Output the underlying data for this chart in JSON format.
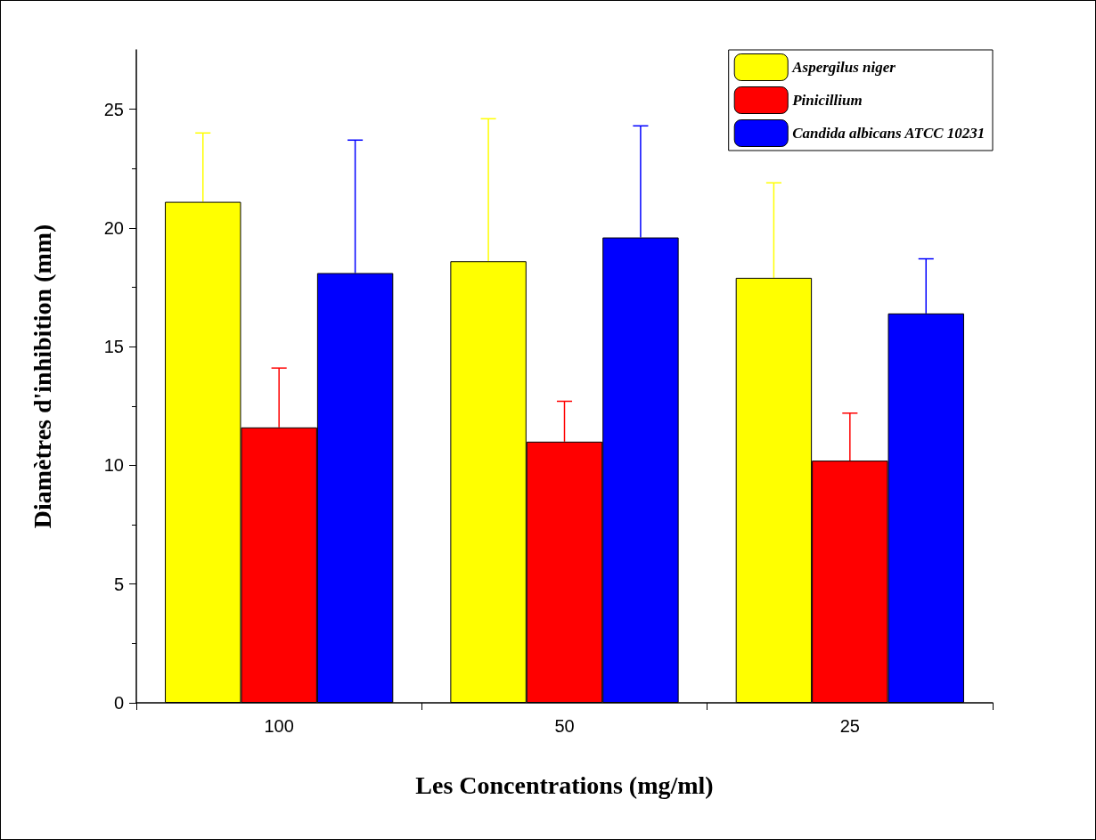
{
  "chart_data": {
    "type": "bar",
    "xlabel": "Les Concentrations (mg/ml)",
    "ylabel": "Diamètres d'inhibition (mm)",
    "categories": [
      "100",
      "50",
      "25"
    ],
    "series": [
      {
        "name": "Aspergilus niger",
        "color": "#ffff00",
        "values": [
          21.1,
          18.6,
          17.9
        ],
        "errors": [
          [
            21.1,
            24.0
          ],
          [
            18.6,
            24.6
          ],
          [
            17.9,
            21.9
          ]
        ]
      },
      {
        "name": "Pinicillium",
        "color": "#ff0000",
        "values": [
          11.6,
          11.0,
          10.2
        ],
        "errors": [
          [
            11.6,
            14.1
          ],
          [
            11.0,
            12.7
          ],
          [
            10.2,
            12.2
          ]
        ]
      },
      {
        "name": "Candida albicans ATCC 10231",
        "color": "#0000ff",
        "values": [
          18.1,
          19.6,
          16.4
        ],
        "errors": [
          [
            18.1,
            23.7
          ],
          [
            19.6,
            24.3
          ],
          [
            16.4,
            18.7
          ]
        ]
      }
    ],
    "ylim": [
      0,
      27.5
    ],
    "yticks": [
      0,
      5,
      10,
      15,
      20,
      25
    ],
    "grid": false,
    "legend": "top right"
  }
}
